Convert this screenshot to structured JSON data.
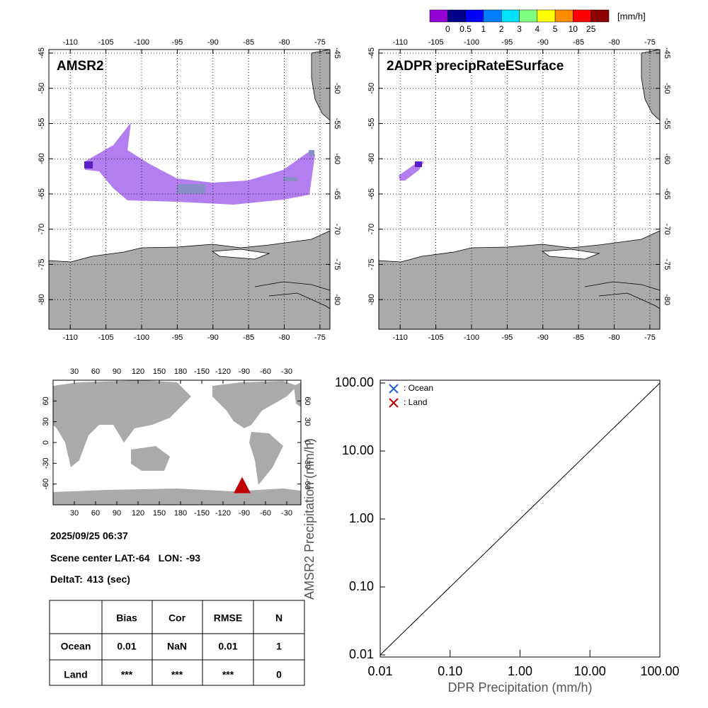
{
  "colorbar": {
    "unit": "[mm/h]",
    "values": [
      0,
      0.5,
      1,
      2,
      3,
      4,
      5,
      10,
      25
    ],
    "colors": [
      "#9400d3",
      "#00008b",
      "#0000ff",
      "#0080ff",
      "#00e0ff",
      "#80ff80",
      "#ffff00",
      "#ff8c00",
      "#ff0000",
      "#8b0000"
    ]
  },
  "chart_data": [
    {
      "type": "map",
      "title": "AMSR2",
      "xlim": [
        -113,
        -73.6
      ],
      "ylim": [
        -84.2,
        -44.5
      ],
      "xticks": [
        -110,
        -105,
        -100,
        -95,
        -90,
        -85,
        -80,
        -75
      ],
      "yticks": [
        -45,
        -50,
        -55,
        -60,
        -65,
        -70,
        -75,
        -80
      ],
      "grid": true
    },
    {
      "type": "map",
      "title": "2ADPR precipRateESurface",
      "xlim": [
        -113,
        -73.6
      ],
      "ylim": [
        -84.2,
        -44.5
      ],
      "xticks": [
        -110,
        -105,
        -100,
        -95,
        -90,
        -85,
        -80,
        -75
      ],
      "yticks": [
        -45,
        -50,
        -55,
        -60,
        -65,
        -70,
        -75,
        -80
      ],
      "grid": true
    },
    {
      "type": "worldmap",
      "xlim": [
        0,
        350
      ],
      "ylim": [
        -90,
        90
      ],
      "xticks": [
        30,
        60,
        90,
        120,
        150,
        180,
        -150,
        -120,
        -90,
        -60,
        -30
      ],
      "yticks": [
        60,
        30,
        0,
        -30,
        -60
      ],
      "marker_color": "#c00000"
    },
    {
      "type": "scatter",
      "log": true,
      "xlabel": "DPR Precipitation (mm/h)",
      "ylabel": "AMSR2 Precipitation (mm/h)",
      "xlim": [
        0.01,
        100
      ],
      "ylim": [
        0.01,
        100
      ],
      "xticks": [
        {
          "value": 0.01,
          "label": "0.01"
        },
        {
          "value": 0.1,
          "label": "0.10"
        },
        {
          "value": 1,
          "label": "1.00"
        },
        {
          "value": 10,
          "label": "10.00"
        },
        {
          "value": 100,
          "label": "100.00"
        }
      ],
      "yticks": [
        {
          "value": 0.01,
          "label": "0.01"
        },
        {
          "value": 0.1,
          "label": "0.10"
        },
        {
          "value": 1,
          "label": "1.00"
        },
        {
          "value": 10,
          "label": "10.00"
        },
        {
          "value": 100,
          "label": "100.00"
        }
      ],
      "series": [
        {
          "name": ": Ocean",
          "color": "#1f5fd6"
        },
        {
          "name": ": Land",
          "color": "#c00000"
        }
      ]
    }
  ],
  "info": {
    "datetime": "2025/09/25 06:37",
    "lat_label": "Scene center LAT:",
    "lat": -64,
    "lon_label": "LON:",
    "lon": -93,
    "deltat_label": "DeltaT:",
    "deltat": 413,
    "deltat_unit": "(sec)"
  },
  "table": {
    "columns": [
      "Bias",
      "Cor",
      "RMSE",
      "N"
    ],
    "rows": [
      [
        "Ocean",
        0.01,
        "NaN",
        0.01,
        1
      ],
      [
        "Land",
        "***",
        "***",
        "***",
        0
      ]
    ]
  }
}
